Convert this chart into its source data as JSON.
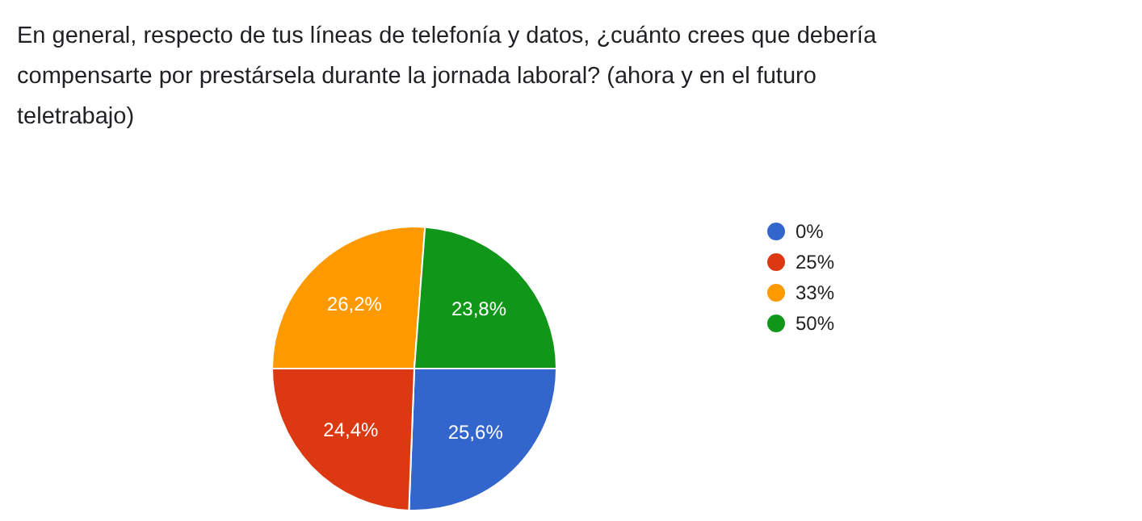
{
  "chart_data": {
    "type": "pie",
    "title": "En general, respecto de tus líneas de telefonía y datos, ¿cuánto crees que debería compensarte por prestársela durante la jornada laboral? (ahora y en el futuro teletrabajo)",
    "categories": [
      "0%",
      "25%",
      "33%",
      "50%"
    ],
    "values": [
      25.6,
      24.4,
      26.2,
      23.8
    ],
    "value_labels": [
      "25,6%",
      "24,4%",
      "26,2%",
      "23,8%"
    ],
    "colors": [
      "#3366cc",
      "#dc3912",
      "#ff9900",
      "#109618"
    ],
    "legend": "right"
  }
}
